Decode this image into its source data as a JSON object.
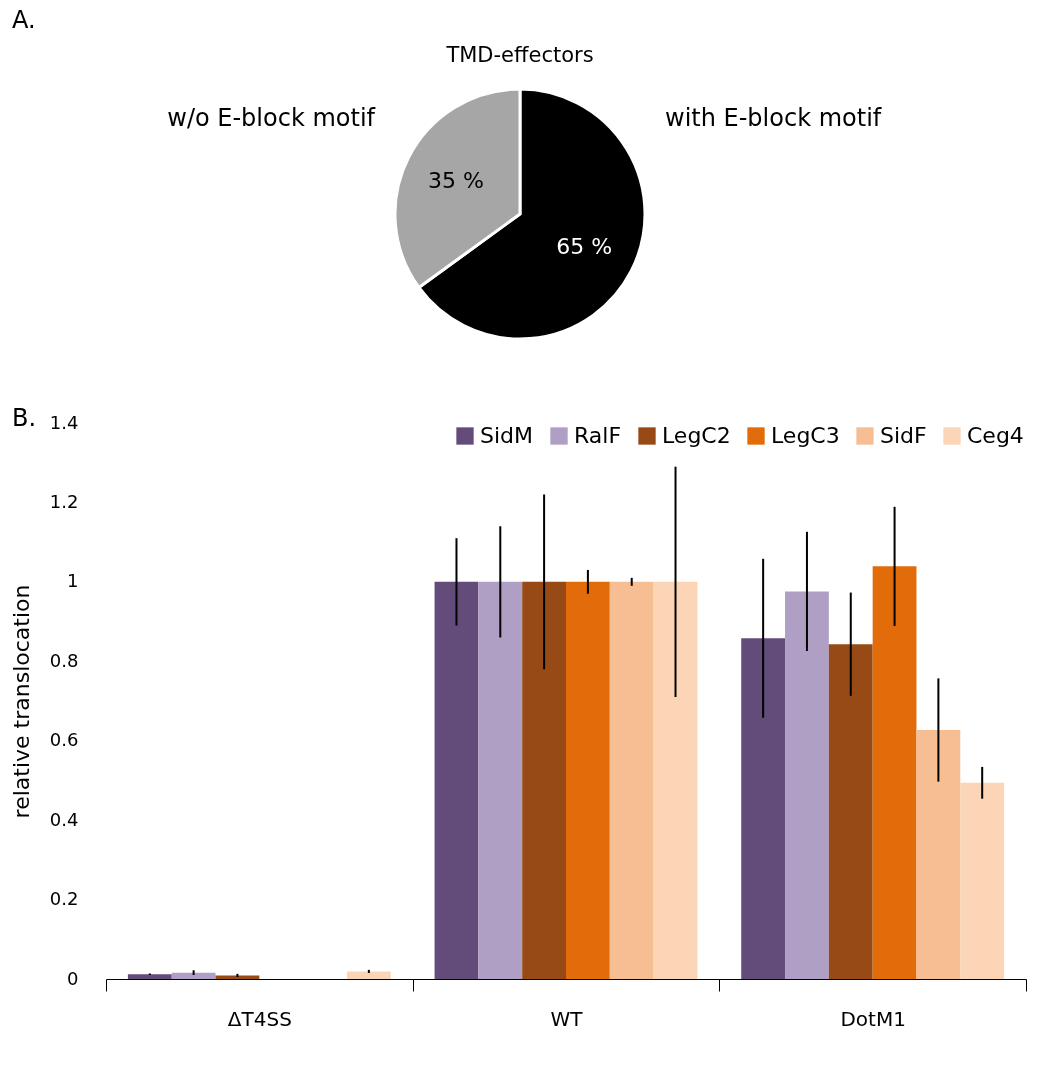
{
  "chart_data": [
    {
      "type": "pie",
      "title": "TMD-effectors",
      "categories": [
        "with E-block motif",
        "w/o E-block motif"
      ],
      "values": [
        65,
        35
      ],
      "colors": [
        "#000000",
        "#a6a6a6"
      ],
      "value_labels": [
        "65 %",
        "35 %"
      ],
      "annotations": [
        "A."
      ]
    },
    {
      "type": "bar",
      "ylabel": "relative translocation",
      "categories": [
        "ΔT4SS",
        "WT",
        "DotM1"
      ],
      "ylim": [
        0,
        1.4
      ],
      "yticks": [
        0,
        0.2,
        0.4,
        0.6,
        0.8,
        1,
        1.2,
        1.4
      ],
      "grid": false,
      "legend": "top right",
      "annotations": [
        "B."
      ],
      "series": [
        {
          "name": "SidM",
          "color": "#634b7a",
          "values": [
            0.012,
            1,
            0.858
          ],
          "errors": [
            0.002,
            0.11,
            0.2
          ]
        },
        {
          "name": "RalF",
          "color": "#b09fc4",
          "values": [
            0.016,
            1,
            0.976
          ],
          "errors": [
            0.006,
            0.14,
            0.15
          ]
        },
        {
          "name": "LegC2",
          "color": "#974a15",
          "values": [
            0.009,
            1,
            0.843
          ],
          "errors": [
            0.004,
            0.22,
            0.13
          ]
        },
        {
          "name": "LegC3",
          "color": "#e36c0a",
          "values": [
            0,
            1,
            1.039
          ],
          "errors": [
            null,
            0.03,
            0.15
          ]
        },
        {
          "name": "SidF",
          "color": "#f7be94",
          "values": [
            0,
            1,
            0.627
          ],
          "errors": [
            null,
            0.01,
            0.13
          ]
        },
        {
          "name": "Ceg4",
          "color": "#fbd5b5",
          "values": [
            0.019,
            1,
            0.494
          ],
          "errors": [
            0.004,
            0.29,
            0.04
          ]
        }
      ]
    }
  ]
}
